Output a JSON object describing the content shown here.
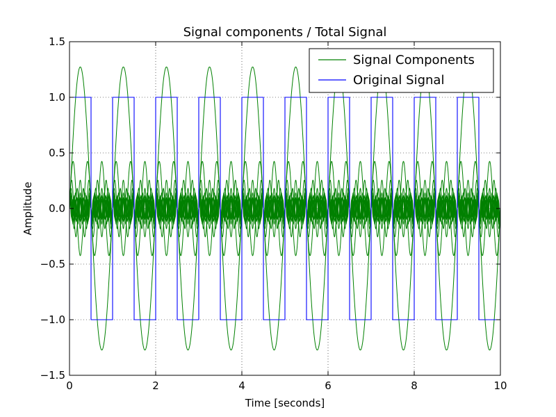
{
  "chart_data": {
    "type": "line",
    "title": "Signal components / Total Signal",
    "xlabel": "Time [seconds]",
    "ylabel": "Amplitude",
    "xlim": [
      0,
      10
    ],
    "ylim": [
      -1.5,
      1.5
    ],
    "xticks": [
      0,
      2,
      4,
      6,
      8,
      10
    ],
    "xtick_labels": [
      "0",
      "2",
      "4",
      "6",
      "8",
      "10"
    ],
    "yticks": [
      -1.5,
      -1.0,
      -0.5,
      0.0,
      0.5,
      1.0,
      1.5
    ],
    "ytick_labels": [
      "−1.5",
      "−1.0",
      "−0.5",
      "0.0",
      "0.5",
      "1.0",
      "1.5"
    ],
    "grid": true,
    "legend_position": "top-right",
    "legend": [
      {
        "label": "Signal Components",
        "color": "#008000"
      },
      {
        "label": "Original Signal",
        "color": "#0000ff"
      }
    ],
    "series": [
      {
        "name": "Signal Components",
        "color": "#008000",
        "kind": "fourier-components",
        "period": 1.0,
        "harmonics": [
          {
            "order": 1,
            "amplitude": 1.273
          },
          {
            "order": 3,
            "amplitude": 0.424
          },
          {
            "order": 5,
            "amplitude": 0.255
          },
          {
            "order": 7,
            "amplitude": 0.182
          },
          {
            "order": 9,
            "amplitude": 0.141
          },
          {
            "order": 11,
            "amplitude": 0.116
          },
          {
            "order": 13,
            "amplitude": 0.098
          },
          {
            "order": 15,
            "amplitude": 0.085
          },
          {
            "order": 17,
            "amplitude": 0.075
          }
        ]
      },
      {
        "name": "Original Signal",
        "color": "#0000ff",
        "kind": "square-wave",
        "period": 1.0,
        "high": 1.0,
        "low": -1.0,
        "x_range": [
          0,
          10
        ]
      }
    ]
  }
}
